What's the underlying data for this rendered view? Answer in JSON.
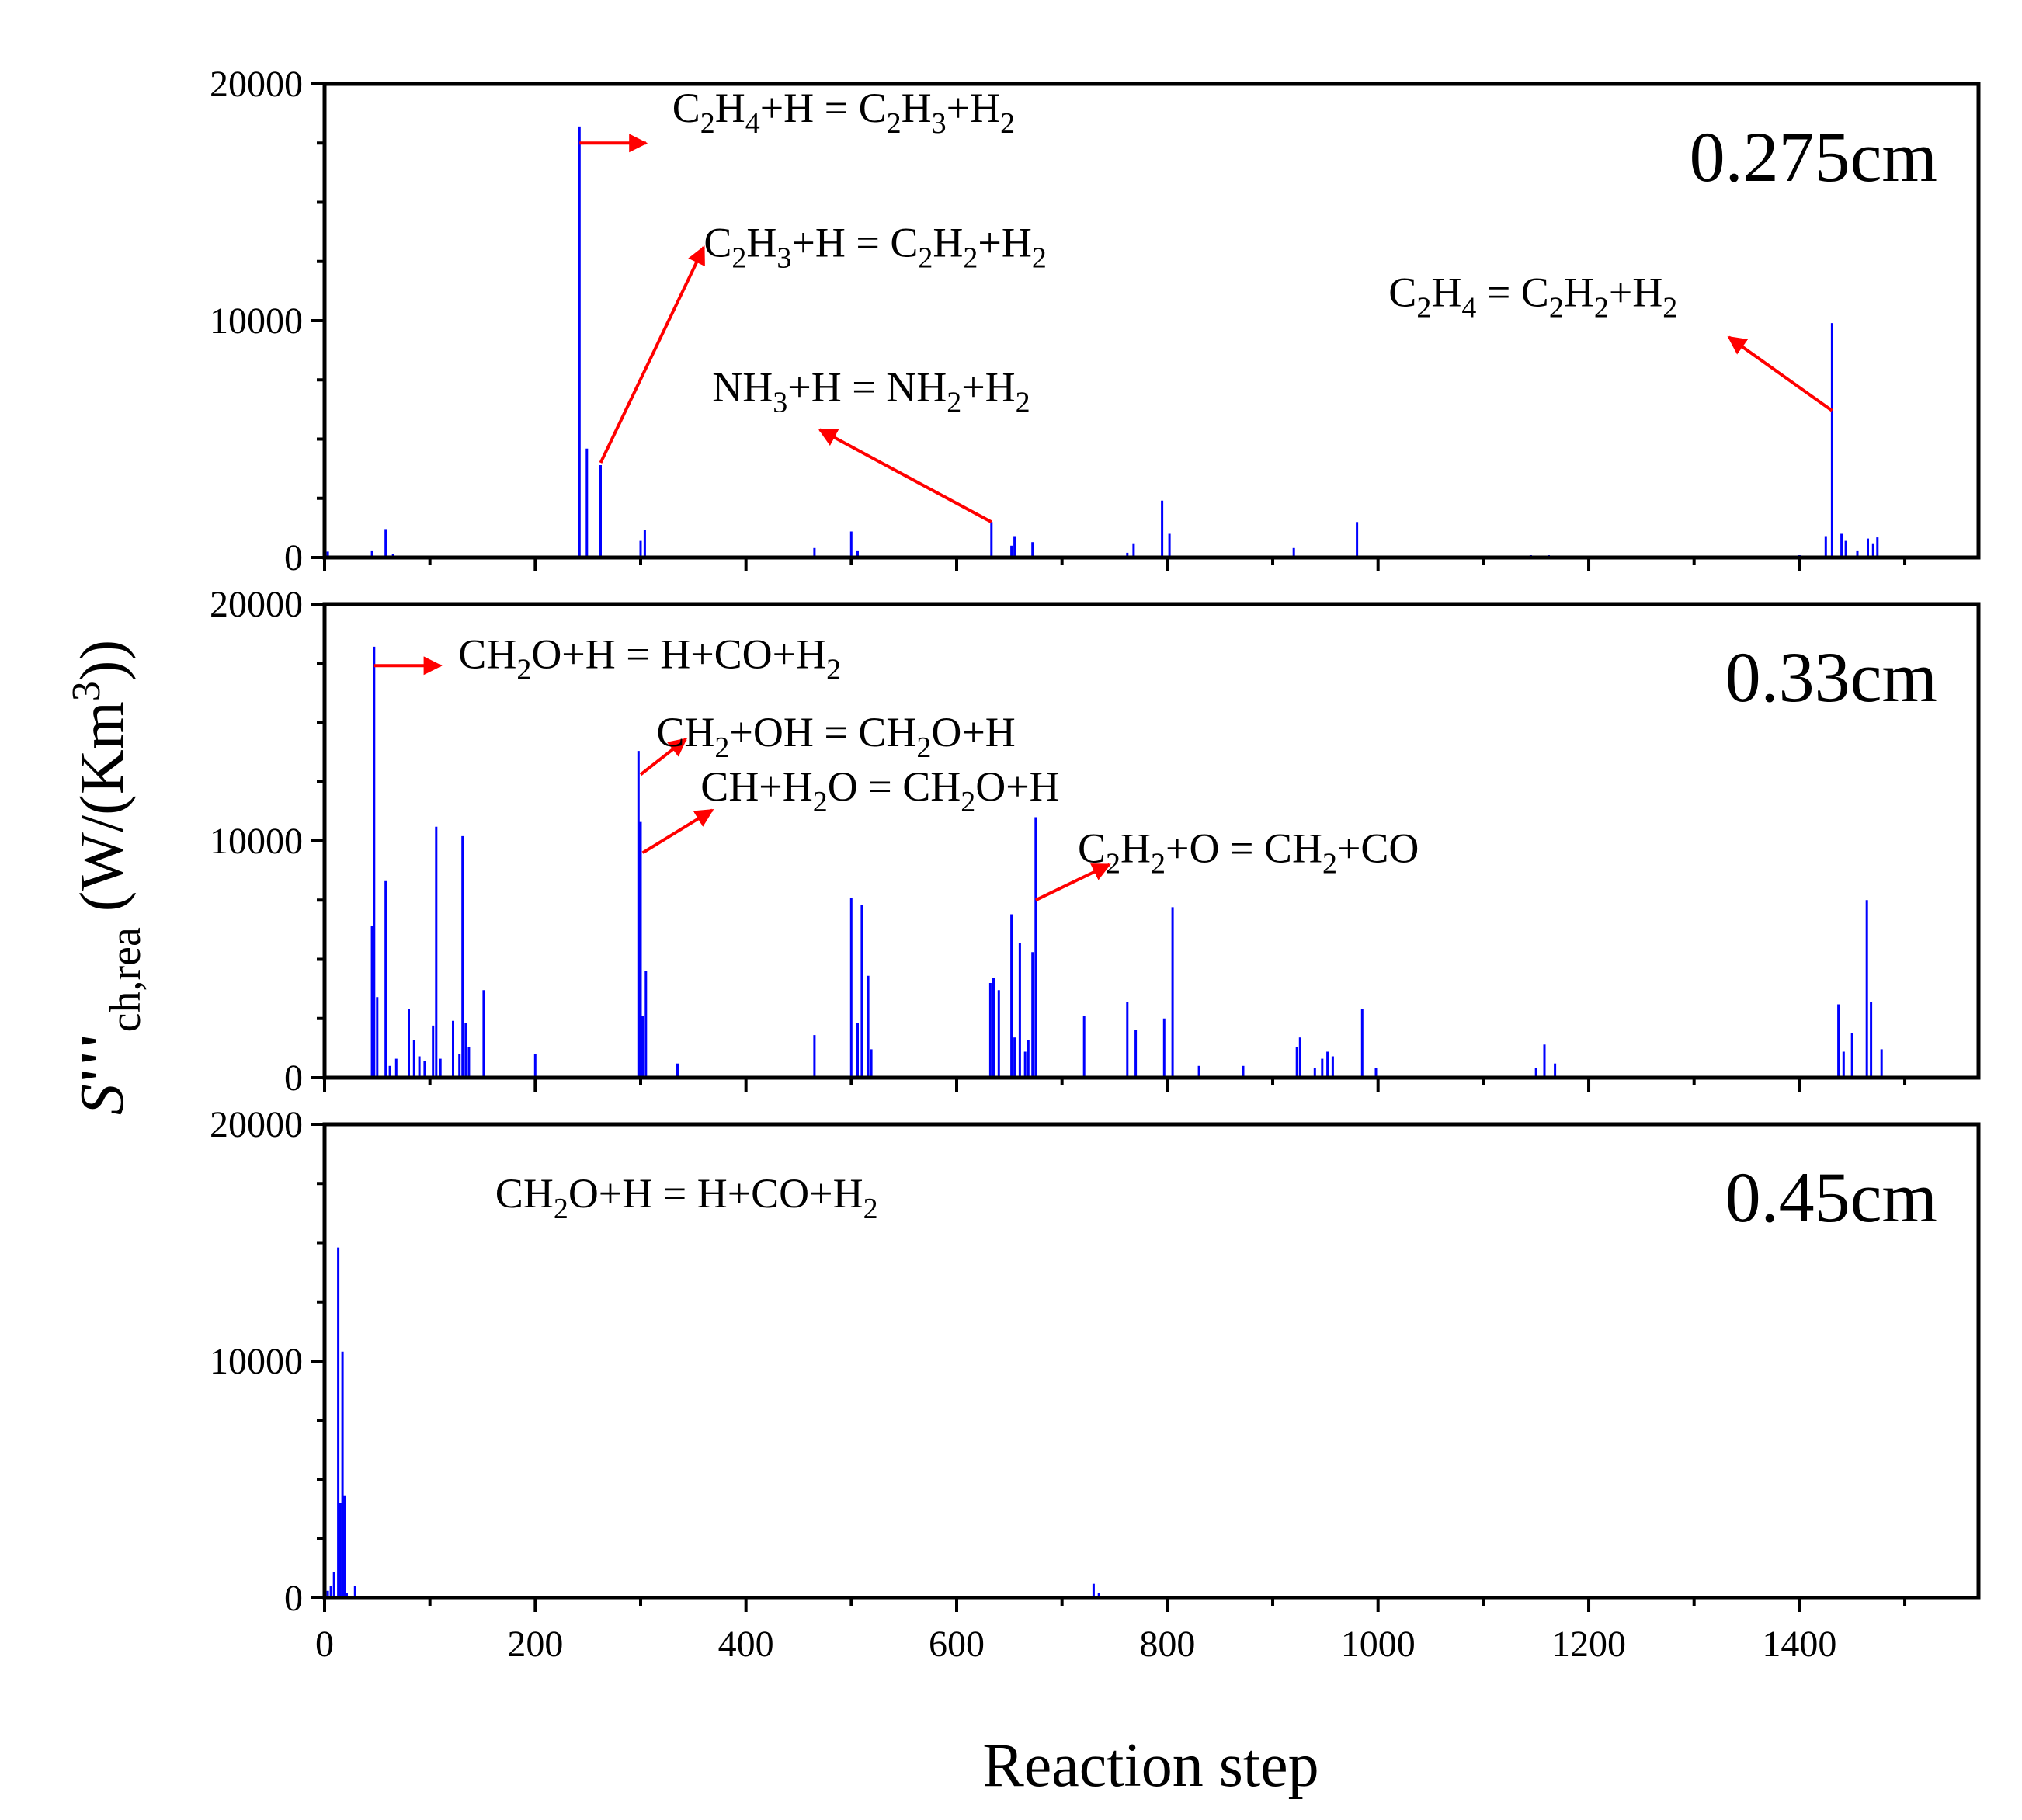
{
  "chart_data": {
    "type": "bar",
    "xlabel": "Reaction step",
    "ylabel": {
      "base": "S",
      "prime": "'''",
      "sub": "ch,rea",
      "unit_open": " (W/(Km",
      "unit_sup": "3",
      "unit_close": "))"
    },
    "xlim": [
      0,
      1570
    ],
    "xticks": [
      0,
      200,
      400,
      600,
      800,
      1000,
      1200,
      1400
    ],
    "xtick_labels": [
      "0",
      "200",
      "400",
      "600",
      "800",
      "1000",
      "1200",
      "1400"
    ],
    "ylim": [
      0,
      20000
    ],
    "yticks": [
      0,
      10000,
      20000
    ],
    "ytick_labels": [
      "0",
      "10000",
      "20000"
    ],
    "bar_color": "#0000ff",
    "arrow_color": "#ff0000",
    "panels": [
      {
        "label": "0.275cm",
        "bars": [
          [
            3,
            250
          ],
          [
            45,
            300
          ],
          [
            58,
            1200
          ],
          [
            65,
            150
          ],
          [
            242,
            18200
          ],
          [
            249,
            4600
          ],
          [
            262,
            3900
          ],
          [
            300,
            700
          ],
          [
            304,
            1150
          ],
          [
            395,
            80
          ],
          [
            465,
            400
          ],
          [
            500,
            1100
          ],
          [
            506,
            300
          ],
          [
            633,
            1500
          ],
          [
            652,
            500
          ],
          [
            655,
            900
          ],
          [
            672,
            650
          ],
          [
            762,
            200
          ],
          [
            768,
            600
          ],
          [
            795,
            2400
          ],
          [
            802,
            1000
          ],
          [
            920,
            400
          ],
          [
            980,
            1500
          ],
          [
            1145,
            100
          ],
          [
            1162,
            100
          ],
          [
            1400,
            100
          ],
          [
            1425,
            900
          ],
          [
            1431,
            9900
          ],
          [
            1440,
            1000
          ],
          [
            1444,
            700
          ],
          [
            1455,
            300
          ],
          [
            1465,
            800
          ],
          [
            1470,
            600
          ],
          [
            1474,
            850
          ]
        ],
        "annotations": [
          {
            "parts": [
              [
                "C",
                "n"
              ],
              [
                "2",
                "b"
              ],
              [
                "H",
                "n"
              ],
              [
                "4",
                "b"
              ],
              [
                "+H = C",
                "n"
              ],
              [
                "2",
                "b"
              ],
              [
                "H",
                "n"
              ],
              [
                "3",
                "b"
              ],
              [
                "+H",
                "n"
              ],
              [
                "2",
                "b"
              ]
            ],
            "text_x": 330,
            "text_y": 18400,
            "arrow": {
              "x1": 242,
              "y1": 17500,
              "x2": 305,
              "y2": 17500
            }
          },
          {
            "parts": [
              [
                "C",
                "n"
              ],
              [
                "2",
                "b"
              ],
              [
                "H",
                "n"
              ],
              [
                "3",
                "b"
              ],
              [
                "+H = C",
                "n"
              ],
              [
                "2",
                "b"
              ],
              [
                "H",
                "n"
              ],
              [
                "2",
                "b"
              ],
              [
                "+H",
                "n"
              ],
              [
                "2",
                "b"
              ]
            ],
            "text_x": 360,
            "text_y": 12700,
            "arrow": {
              "x1": 262,
              "y1": 4000,
              "x2": 360,
              "y2": 13100
            }
          },
          {
            "parts": [
              [
                "NH",
                "n"
              ],
              [
                "3",
                "b"
              ],
              [
                "+H = NH",
                "n"
              ],
              [
                "2",
                "b"
              ],
              [
                "+H",
                "n"
              ],
              [
                "2",
                "b"
              ]
            ],
            "text_x": 368,
            "text_y": 6600,
            "arrow": {
              "x1": 633,
              "y1": 1500,
              "x2": 470,
              "y2": 5400
            }
          },
          {
            "parts": [
              [
                "C",
                "n"
              ],
              [
                "2",
                "b"
              ],
              [
                "H",
                "n"
              ],
              [
                "4",
                "b"
              ],
              [
                " = C",
                "n"
              ],
              [
                "2",
                "b"
              ],
              [
                "H",
                "n"
              ],
              [
                "2",
                "b"
              ],
              [
                "+H",
                "n"
              ],
              [
                "2",
                "b"
              ]
            ],
            "text_x": 1010,
            "text_y": 10600,
            "arrow": {
              "x1": 1431,
              "y1": 6200,
              "x2": 1333,
              "y2": 9300
            }
          }
        ]
      },
      {
        "label": "0.33cm",
        "bars": [
          [
            45,
            6400
          ],
          [
            47,
            18200
          ],
          [
            50,
            3400
          ],
          [
            58,
            8300
          ],
          [
            62,
            500
          ],
          [
            68,
            800
          ],
          [
            80,
            2900
          ],
          [
            85,
            1600
          ],
          [
            90,
            900
          ],
          [
            95,
            700
          ],
          [
            103,
            2200
          ],
          [
            106,
            10600
          ],
          [
            110,
            800
          ],
          [
            122,
            2400
          ],
          [
            128,
            1000
          ],
          [
            131,
            10200
          ],
          [
            134,
            2300
          ],
          [
            137,
            1300
          ],
          [
            151,
            3700
          ],
          [
            200,
            1000
          ],
          [
            298,
            13800
          ],
          [
            300,
            10800
          ],
          [
            302,
            2600
          ],
          [
            305,
            4500
          ],
          [
            335,
            600
          ],
          [
            465,
            1800
          ],
          [
            500,
            7600
          ],
          [
            506,
            2300
          ],
          [
            510,
            7300
          ],
          [
            516,
            4300
          ],
          [
            519,
            1200
          ],
          [
            632,
            4000
          ],
          [
            635,
            4200
          ],
          [
            640,
            3700
          ],
          [
            652,
            6900
          ],
          [
            655,
            1700
          ],
          [
            660,
            5700
          ],
          [
            665,
            1100
          ],
          [
            668,
            1600
          ],
          [
            672,
            5300
          ],
          [
            675,
            11000
          ],
          [
            721,
            2600
          ],
          [
            762,
            3200
          ],
          [
            770,
            2000
          ],
          [
            797,
            2500
          ],
          [
            805,
            7200
          ],
          [
            830,
            500
          ],
          [
            872,
            500
          ],
          [
            923,
            1300
          ],
          [
            926,
            1700
          ],
          [
            940,
            400
          ],
          [
            947,
            800
          ],
          [
            952,
            1100
          ],
          [
            957,
            900
          ],
          [
            985,
            2900
          ],
          [
            998,
            400
          ],
          [
            1150,
            400
          ],
          [
            1158,
            1400
          ],
          [
            1168,
            600
          ],
          [
            1437,
            3100
          ],
          [
            1442,
            1100
          ],
          [
            1450,
            1900
          ],
          [
            1464,
            7500
          ],
          [
            1468,
            3200
          ],
          [
            1478,
            1200
          ]
        ],
        "annotations": [
          {
            "parts": [
              [
                "CH",
                "n"
              ],
              [
                "2",
                "b"
              ],
              [
                "O+H = H+CO+H",
                "n"
              ],
              [
                "2",
                "b"
              ]
            ],
            "text_x": 127,
            "text_y": 17300,
            "arrow": {
              "x1": 47,
              "y1": 17400,
              "x2": 110,
              "y2": 17400
            }
          },
          {
            "parts": [
              [
                "CH",
                "n"
              ],
              [
                "2",
                "b"
              ],
              [
                "+OH = CH",
                "n"
              ],
              [
                "2",
                "b"
              ],
              [
                "O+H",
                "n"
              ]
            ],
            "text_x": 315,
            "text_y": 14000,
            "arrow": {
              "x1": 300,
              "y1": 12800,
              "x2": 343,
              "y2": 14300
            }
          },
          {
            "parts": [
              [
                "CH+H",
                "n"
              ],
              [
                "2",
                "b"
              ],
              [
                "O = CH",
                "n"
              ],
              [
                "2",
                "b"
              ],
              [
                "O+H",
                "n"
              ]
            ],
            "text_x": 357,
            "text_y": 11700,
            "arrow": {
              "x1": 302,
              "y1": 9500,
              "x2": 368,
              "y2": 11300
            }
          },
          {
            "parts": [
              [
                "C",
                "n"
              ],
              [
                "2",
                "b"
              ],
              [
                "H",
                "n"
              ],
              [
                "2",
                "b"
              ],
              [
                "+O = CH",
                "n"
              ],
              [
                "2",
                "b"
              ],
              [
                "+CO",
                "n"
              ]
            ],
            "text_x": 715,
            "text_y": 9100,
            "arrow": {
              "x1": 675,
              "y1": 7500,
              "x2": 745,
              "y2": 9000
            }
          }
        ]
      },
      {
        "label": "0.45cm",
        "bars": [
          [
            3,
            300
          ],
          [
            6,
            500
          ],
          [
            9,
            1100
          ],
          [
            13,
            14800
          ],
          [
            15,
            4000
          ],
          [
            17,
            10400
          ],
          [
            19,
            4300
          ],
          [
            21,
            200
          ],
          [
            29,
            500
          ],
          [
            730,
            600
          ],
          [
            735,
            200
          ]
        ],
        "annotations": [
          {
            "parts": [
              [
                "CH",
                "n"
              ],
              [
                "2",
                "b"
              ],
              [
                "O+H = H+CO+H",
                "n"
              ],
              [
                "2",
                "b"
              ]
            ],
            "text_x": 162,
            "text_y": 16500,
            "arrow": null
          }
        ]
      }
    ]
  }
}
